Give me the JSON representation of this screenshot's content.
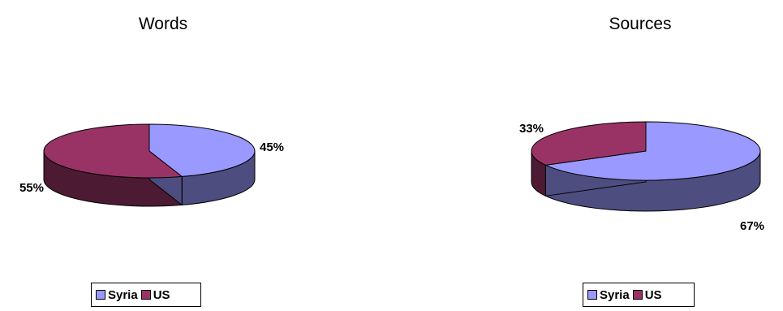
{
  "colors": {
    "syria_top": "#9999ff",
    "syria_side": "#4d4d80",
    "us_top": "#993366",
    "us_side": "#4d1a33"
  },
  "chart_data": [
    {
      "type": "pie",
      "title": "Words",
      "series": [
        {
          "name": "Syria",
          "value": 45,
          "label": "45%"
        },
        {
          "name": "US",
          "value": 55,
          "label": "55%"
        }
      ],
      "legend": [
        "Syria",
        "US"
      ],
      "legend_placement": "bottom",
      "style": "3d"
    },
    {
      "type": "pie",
      "title": "Sources",
      "series": [
        {
          "name": "Syria",
          "value": 67,
          "label": "67%"
        },
        {
          "name": "US",
          "value": 33,
          "label": "33%"
        }
      ],
      "legend": [
        "Syria",
        "US"
      ],
      "legend_placement": "bottom",
      "style": "3d"
    }
  ]
}
